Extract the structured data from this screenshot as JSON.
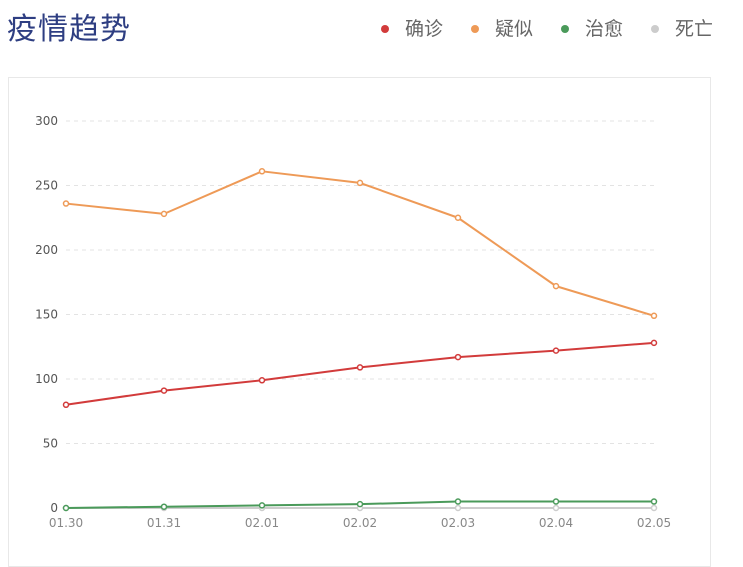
{
  "title": "疫情趋势",
  "legend": [
    {
      "name": "确诊",
      "color": "#d23b3b"
    },
    {
      "name": "疑似",
      "color": "#ee9a57"
    },
    {
      "name": "治愈",
      "color": "#4a9a5a"
    },
    {
      "name": "死亡",
      "color": "#cccccc"
    }
  ],
  "chart_data": {
    "type": "line",
    "title": "疫情趋势",
    "xlabel": "",
    "ylabel": "",
    "categories": [
      "01.30",
      "01.31",
      "02.01",
      "02.02",
      "02.03",
      "02.04",
      "02.05"
    ],
    "ylim": [
      0,
      300
    ],
    "yticks": [
      0,
      50,
      100,
      150,
      200,
      250,
      300
    ],
    "grid": true,
    "legend_position": "top-right",
    "series": [
      {
        "name": "确诊",
        "color": "#d23b3b",
        "values": [
          80,
          91,
          99,
          109,
          117,
          122,
          128
        ]
      },
      {
        "name": "疑似",
        "color": "#ee9a57",
        "values": [
          236,
          228,
          261,
          252,
          225,
          172,
          149
        ]
      },
      {
        "name": "治愈",
        "color": "#4a9a5a",
        "values": [
          0,
          1,
          2,
          3,
          5,
          5,
          5
        ]
      },
      {
        "name": "死亡",
        "color": "#cccccc",
        "values": [
          0,
          0,
          0,
          0,
          0,
          0,
          0
        ]
      }
    ]
  }
}
